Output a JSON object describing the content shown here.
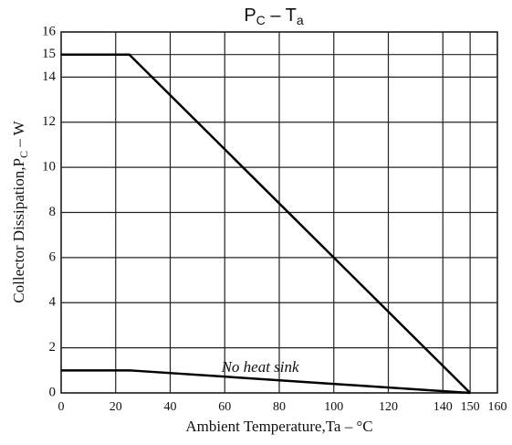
{
  "chart_data": {
    "type": "line",
    "title": [
      {
        "text": "P"
      },
      {
        "sub": "C"
      },
      {
        "text": " – T"
      },
      {
        "sub": "a"
      }
    ],
    "x_label": "Ambient Temperature,Ta – °C",
    "y_label": [
      {
        "text": "Collector Dissipation,P"
      },
      {
        "sub": "C"
      },
      {
        "text": " – W"
      }
    ],
    "series": [
      {
        "color": "#000000",
        "x": [
          0,
          25,
          150
        ],
        "values": [
          15,
          15,
          0
        ]
      },
      {
        "color": "#000000",
        "x": [
          0,
          25,
          150
        ],
        "values": [
          1,
          1,
          0
        ]
      }
    ],
    "annotations": [
      {
        "text": "No heat sink",
        "x": 73,
        "y": 1
      }
    ],
    "xlim": [
      0,
      160
    ],
    "xticks": [
      0,
      20,
      40,
      60,
      80,
      100,
      120,
      140,
      150,
      160
    ],
    "ylim": [
      0,
      16
    ],
    "yticks": [
      0,
      2,
      4,
      6,
      8,
      10,
      12,
      14,
      15,
      16
    ],
    "grid": true
  }
}
